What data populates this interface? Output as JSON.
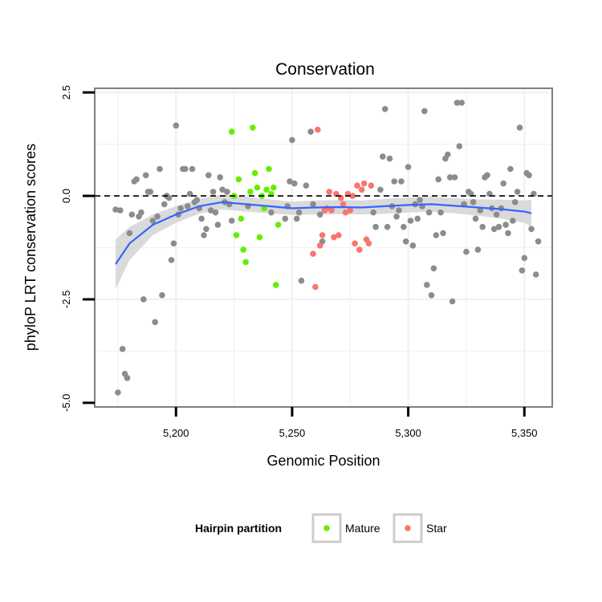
{
  "chart_data": {
    "type": "scatter",
    "title": "Conservation",
    "xlabel": "Genomic Position",
    "ylabel": "phyloP LRT conservation scores",
    "xlim": [
      5165,
      5362
    ],
    "ylim": [
      -5.1,
      2.6
    ],
    "x_ticks": [
      5200,
      5250,
      5300,
      5350
    ],
    "x_tick_labels": [
      "5,200",
      "5,250",
      "5,300",
      "5,350"
    ],
    "y_ticks": [
      -5.0,
      -2.5,
      0.0,
      2.5
    ],
    "y_tick_labels": [
      "-5.0",
      "-2.5",
      "0.0",
      "2.5"
    ],
    "reference_line": {
      "y": 0,
      "style": "dashed"
    },
    "grid": true,
    "legend": {
      "title": "Hairpin partition",
      "position": "bottom",
      "entries": [
        {
          "label": "Mature",
          "color": "#66ee00"
        },
        {
          "label": "Star",
          "color": "#f8766d"
        }
      ]
    },
    "colors": {
      "other": "#8c8c8c",
      "mature": "#66ee00",
      "star": "#f8766d",
      "smooth": "#3366ff",
      "ribbon": "#d3d3d3"
    },
    "series": [
      {
        "name": "",
        "category": "other",
        "points": [
          [
            5174,
            -0.33
          ],
          [
            5175,
            -4.75
          ],
          [
            5176,
            -0.35
          ],
          [
            5177,
            -3.7
          ],
          [
            5178,
            -4.3
          ],
          [
            5179,
            -4.4
          ],
          [
            5180,
            -0.9
          ],
          [
            5181,
            -0.45
          ],
          [
            5182,
            0.35
          ],
          [
            5183,
            0.4
          ],
          [
            5184,
            -0.5
          ],
          [
            5185,
            -0.4
          ],
          [
            5186,
            -2.5
          ],
          [
            5187,
            0.5
          ],
          [
            5188,
            0.1
          ],
          [
            5189,
            0.1
          ],
          [
            5190,
            -0.6
          ],
          [
            5191,
            -3.05
          ],
          [
            5192,
            -0.5
          ],
          [
            5193,
            0.65
          ],
          [
            5194,
            -2.4
          ],
          [
            5195,
            -0.2
          ],
          [
            5196,
            0.0
          ],
          [
            5197,
            -0.05
          ],
          [
            5198,
            -1.55
          ],
          [
            5199,
            -1.15
          ],
          [
            5200,
            1.7
          ],
          [
            5201,
            -0.45
          ],
          [
            5202,
            -0.3
          ],
          [
            5203,
            0.65
          ],
          [
            5204,
            0.65
          ],
          [
            5205,
            -0.25
          ],
          [
            5206,
            0.05
          ],
          [
            5207,
            0.65
          ],
          [
            5208,
            -0.15
          ],
          [
            5209,
            -0.1
          ],
          [
            5210,
            -0.3
          ],
          [
            5211,
            -0.55
          ],
          [
            5212,
            -0.95
          ],
          [
            5213,
            -0.8
          ],
          [
            5214,
            0.5
          ],
          [
            5215,
            -0.35
          ],
          [
            5216,
            0.1
          ],
          [
            5217,
            -0.4
          ],
          [
            5218,
            -0.7
          ],
          [
            5219,
            0.45
          ],
          [
            5220,
            0.15
          ],
          [
            5221,
            -0.15
          ],
          [
            5222,
            0.1
          ],
          [
            5223,
            -0.2
          ],
          [
            5224,
            -0.6
          ],
          [
            5231,
            -0.25
          ],
          [
            5241,
            -0.4
          ],
          [
            5247,
            -0.55
          ],
          [
            5248,
            -0.25
          ],
          [
            5249,
            0.35
          ],
          [
            5250,
            1.35
          ],
          [
            5251,
            0.3
          ],
          [
            5252,
            -0.55
          ],
          [
            5253,
            -0.4
          ],
          [
            5254,
            -2.05
          ],
          [
            5256,
            0.25
          ],
          [
            5258,
            1.55
          ],
          [
            5259,
            -0.2
          ],
          [
            5262,
            -0.45
          ],
          [
            5263,
            -1.1
          ],
          [
            5285,
            -0.4
          ],
          [
            5286,
            -0.75
          ],
          [
            5288,
            0.15
          ],
          [
            5289,
            0.95
          ],
          [
            5290,
            2.1
          ],
          [
            5291,
            -0.75
          ],
          [
            5292,
            0.9
          ],
          [
            5293,
            -0.25
          ],
          [
            5294,
            0.35
          ],
          [
            5295,
            -0.5
          ],
          [
            5296,
            -0.35
          ],
          [
            5297,
            0.35
          ],
          [
            5298,
            -0.75
          ],
          [
            5299,
            -1.1
          ],
          [
            5300,
            0.7
          ],
          [
            5301,
            -0.6
          ],
          [
            5302,
            -1.2
          ],
          [
            5303,
            -0.2
          ],
          [
            5304,
            -0.55
          ],
          [
            5305,
            -0.1
          ],
          [
            5306,
            -0.25
          ],
          [
            5307,
            2.05
          ],
          [
            5308,
            -2.15
          ],
          [
            5309,
            -0.4
          ],
          [
            5310,
            -2.4
          ],
          [
            5311,
            -1.75
          ],
          [
            5312,
            -0.95
          ],
          [
            5313,
            0.4
          ],
          [
            5314,
            -0.4
          ],
          [
            5315,
            -0.9
          ],
          [
            5316,
            0.9
          ],
          [
            5317,
            1.0
          ],
          [
            5318,
            0.45
          ],
          [
            5319,
            -2.55
          ],
          [
            5320,
            0.45
          ],
          [
            5321,
            2.25
          ],
          [
            5322,
            1.2
          ],
          [
            5323,
            2.25
          ],
          [
            5324,
            -0.2
          ],
          [
            5325,
            -1.35
          ],
          [
            5326,
            0.1
          ],
          [
            5327,
            0.05
          ],
          [
            5328,
            -0.15
          ],
          [
            5329,
            -0.55
          ],
          [
            5330,
            -1.3
          ],
          [
            5331,
            -0.35
          ],
          [
            5332,
            -0.75
          ],
          [
            5333,
            0.45
          ],
          [
            5334,
            0.5
          ],
          [
            5335,
            0.05
          ],
          [
            5336,
            -0.3
          ],
          [
            5337,
            -0.8
          ],
          [
            5338,
            -0.45
          ],
          [
            5339,
            -0.75
          ],
          [
            5340,
            -0.3
          ],
          [
            5341,
            0.3
          ],
          [
            5342,
            -0.7
          ],
          [
            5343,
            -0.9
          ],
          [
            5344,
            0.65
          ],
          [
            5345,
            -0.6
          ],
          [
            5346,
            -0.15
          ],
          [
            5347,
            0.1
          ],
          [
            5348,
            1.65
          ],
          [
            5349,
            -1.8
          ],
          [
            5350,
            -1.5
          ],
          [
            5351,
            0.55
          ],
          [
            5352,
            0.5
          ],
          [
            5353,
            -0.8
          ],
          [
            5354,
            0.05
          ],
          [
            5355,
            -1.9
          ],
          [
            5356,
            -1.1
          ]
        ]
      },
      {
        "name": "Mature",
        "category": "mature",
        "points": [
          [
            5224,
            1.55
          ],
          [
            5225,
            0.0
          ],
          [
            5226,
            -0.95
          ],
          [
            5227,
            0.4
          ],
          [
            5228,
            -0.55
          ],
          [
            5229,
            -1.3
          ],
          [
            5230,
            -1.6
          ],
          [
            5232,
            0.1
          ],
          [
            5233,
            1.65
          ],
          [
            5234,
            0.55
          ],
          [
            5235,
            0.2
          ],
          [
            5236,
            -1.0
          ],
          [
            5237,
            0.0
          ],
          [
            5238,
            -0.3
          ],
          [
            5239,
            0.15
          ],
          [
            5240,
            0.65
          ],
          [
            5241,
            0.05
          ],
          [
            5242,
            0.2
          ],
          [
            5243,
            -2.15
          ],
          [
            5244,
            -0.7
          ]
        ]
      },
      {
        "name": "Star",
        "category": "star",
        "points": [
          [
            5259,
            -1.4
          ],
          [
            5260,
            -2.2
          ],
          [
            5261,
            1.6
          ],
          [
            5262,
            -1.2
          ],
          [
            5263,
            -0.95
          ],
          [
            5264,
            -0.35
          ],
          [
            5265,
            -0.3
          ],
          [
            5266,
            0.1
          ],
          [
            5267,
            -0.35
          ],
          [
            5268,
            -1.0
          ],
          [
            5269,
            0.05
          ],
          [
            5270,
            -0.95
          ],
          [
            5271,
            -0.05
          ],
          [
            5272,
            -0.2
          ],
          [
            5273,
            -0.4
          ],
          [
            5274,
            0.05
          ],
          [
            5275,
            -0.35
          ],
          [
            5276,
            0.0
          ],
          [
            5277,
            -1.15
          ],
          [
            5278,
            0.25
          ],
          [
            5279,
            -1.3
          ],
          [
            5280,
            0.15
          ],
          [
            5281,
            0.3
          ],
          [
            5282,
            -1.05
          ],
          [
            5283,
            -1.15
          ],
          [
            5284,
            0.25
          ]
        ]
      }
    ],
    "smooth": {
      "x": [
        5174,
        5180,
        5190,
        5200,
        5210,
        5220,
        5230,
        5240,
        5250,
        5260,
        5270,
        5280,
        5290,
        5300,
        5310,
        5320,
        5330,
        5340,
        5350,
        5353
      ],
      "y": [
        -1.65,
        -1.15,
        -0.7,
        -0.45,
        -0.25,
        -0.15,
        -0.2,
        -0.25,
        -0.3,
        -0.28,
        -0.27,
        -0.28,
        -0.25,
        -0.22,
        -0.2,
        -0.24,
        -0.28,
        -0.32,
        -0.38,
        -0.42
      ],
      "lower": [
        -2.25,
        -1.55,
        -0.95,
        -0.65,
        -0.43,
        -0.33,
        -0.38,
        -0.42,
        -0.46,
        -0.45,
        -0.44,
        -0.45,
        -0.43,
        -0.4,
        -0.38,
        -0.42,
        -0.48,
        -0.55,
        -0.65,
        -0.75
      ],
      "upper": [
        -1.05,
        -0.75,
        -0.45,
        -0.25,
        -0.07,
        0.03,
        -0.02,
        -0.08,
        -0.14,
        -0.11,
        -0.1,
        -0.11,
        -0.07,
        -0.04,
        -0.02,
        -0.06,
        -0.08,
        -0.09,
        -0.11,
        -0.09
      ]
    }
  }
}
